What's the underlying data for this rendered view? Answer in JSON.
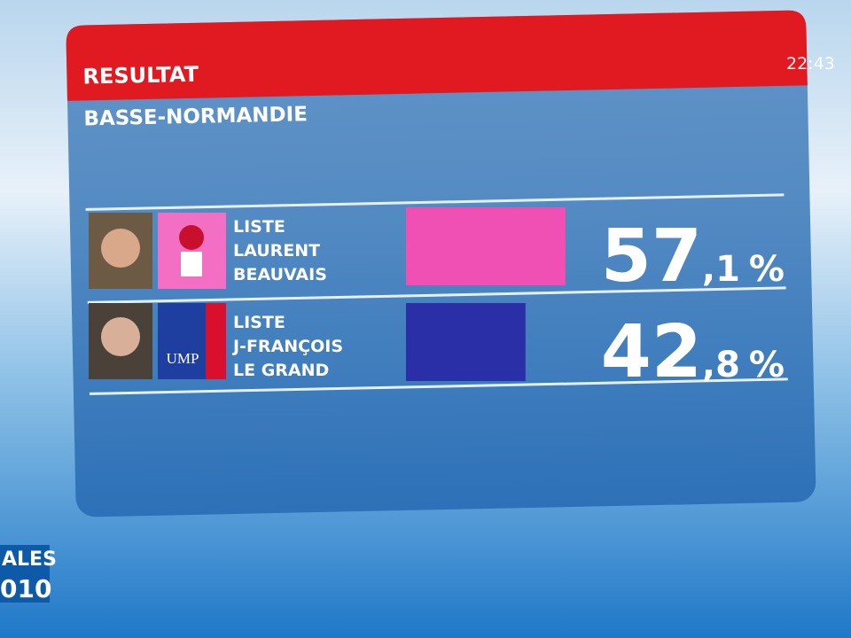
{
  "header": {
    "title": "RESULTAT",
    "region": "BASSE-NORMANDIE",
    "clock": "22:43"
  },
  "results": [
    {
      "name_lines": [
        "LISTE",
        "LAURENT",
        "BEAUVAIS"
      ],
      "value": 57.1,
      "label_whole": "57",
      "label_fraction": ",1",
      "label_unit": "%",
      "color": "#f04fb4"
    },
    {
      "name_lines": [
        "LISTE",
        "J-FRANÇOIS",
        "LE GRAND"
      ],
      "value": 42.8,
      "label_whole": "42",
      "label_fraction": ",8",
      "label_unit": "%",
      "color": "#2a2fa8",
      "logo_text": "UMP"
    }
  ],
  "channel_logo": {
    "lines": [
      "ALES",
      "010"
    ]
  }
}
